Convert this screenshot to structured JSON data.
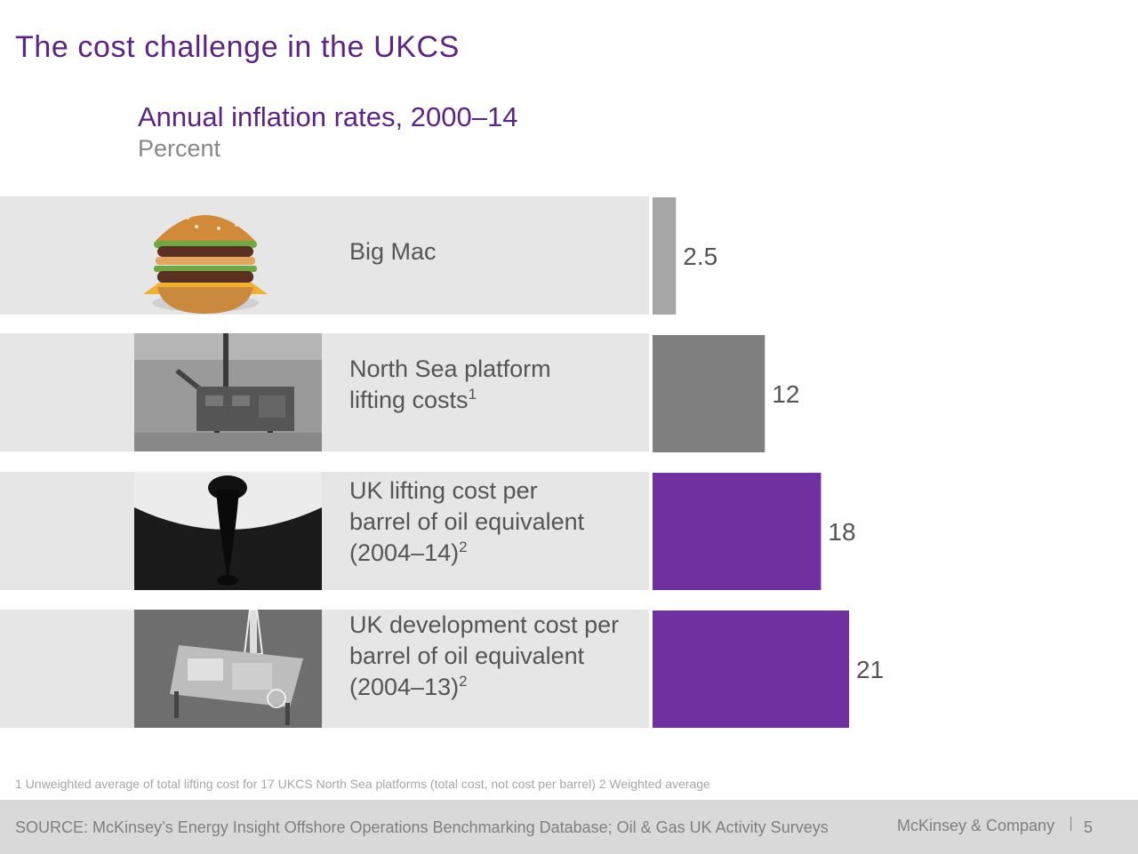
{
  "slide_title": "The cost challenge in the UKCS",
  "chart_data": {
    "type": "bar",
    "title": "Annual inflation rates, 2000–14",
    "subtitle": "Percent",
    "orientation": "horizontal",
    "xlim": [
      0,
      21
    ],
    "categories": [
      "Big Mac",
      "North Sea platform lifting costs¹",
      "UK lifting cost per barrel of oil equivalent (2004–14)²",
      "UK development cost per barrel of oil equivalent (2004–13)²"
    ],
    "values": [
      2.5,
      12,
      18,
      21
    ],
    "value_labels": [
      "2.5",
      "12",
      "18",
      "21"
    ],
    "bar_colors": [
      "#a6a6a6",
      "#7f7f7f",
      "#7030a0",
      "#7030a0"
    ]
  },
  "rows": [
    {
      "lines": [
        {
          "text": "Big Mac",
          "sup": ""
        }
      ],
      "image": "big-mac-burger"
    },
    {
      "lines": [
        {
          "text": "North Sea platform",
          "sup": ""
        },
        {
          "text": "lifting costs",
          "sup": "1"
        }
      ],
      "image": "offshore-platform-photo"
    },
    {
      "lines": [
        {
          "text": "UK lifting cost per",
          "sup": ""
        },
        {
          "text": "barrel of oil equivalent",
          "sup": ""
        },
        {
          "text": "(2004–14)",
          "sup": "2"
        }
      ],
      "image": "oil-drop-barrel-photo"
    },
    {
      "lines": [
        {
          "text": "UK development cost per",
          "sup": ""
        },
        {
          "text": "barrel of oil equivalent",
          "sup": ""
        },
        {
          "text": "(2004–13)",
          "sup": "2"
        }
      ],
      "image": "drilling-rig-photo"
    }
  ],
  "footnote": "1 Unweighted average of total lifting cost for 17 UKCS North Sea platforms (total cost, not cost per barrel) 2 Weighted average",
  "footer": {
    "source": "SOURCE: McKinsey’s Energy Insight Offshore Operations Benchmarking Database; Oil & Gas UK Activity Surveys",
    "brand": "McKinsey & Company",
    "page_number": "5"
  },
  "colors": {
    "title_purple": "#5c2483",
    "row_bg": "#e6e6e6",
    "footer_bg": "#d9d9d9"
  }
}
